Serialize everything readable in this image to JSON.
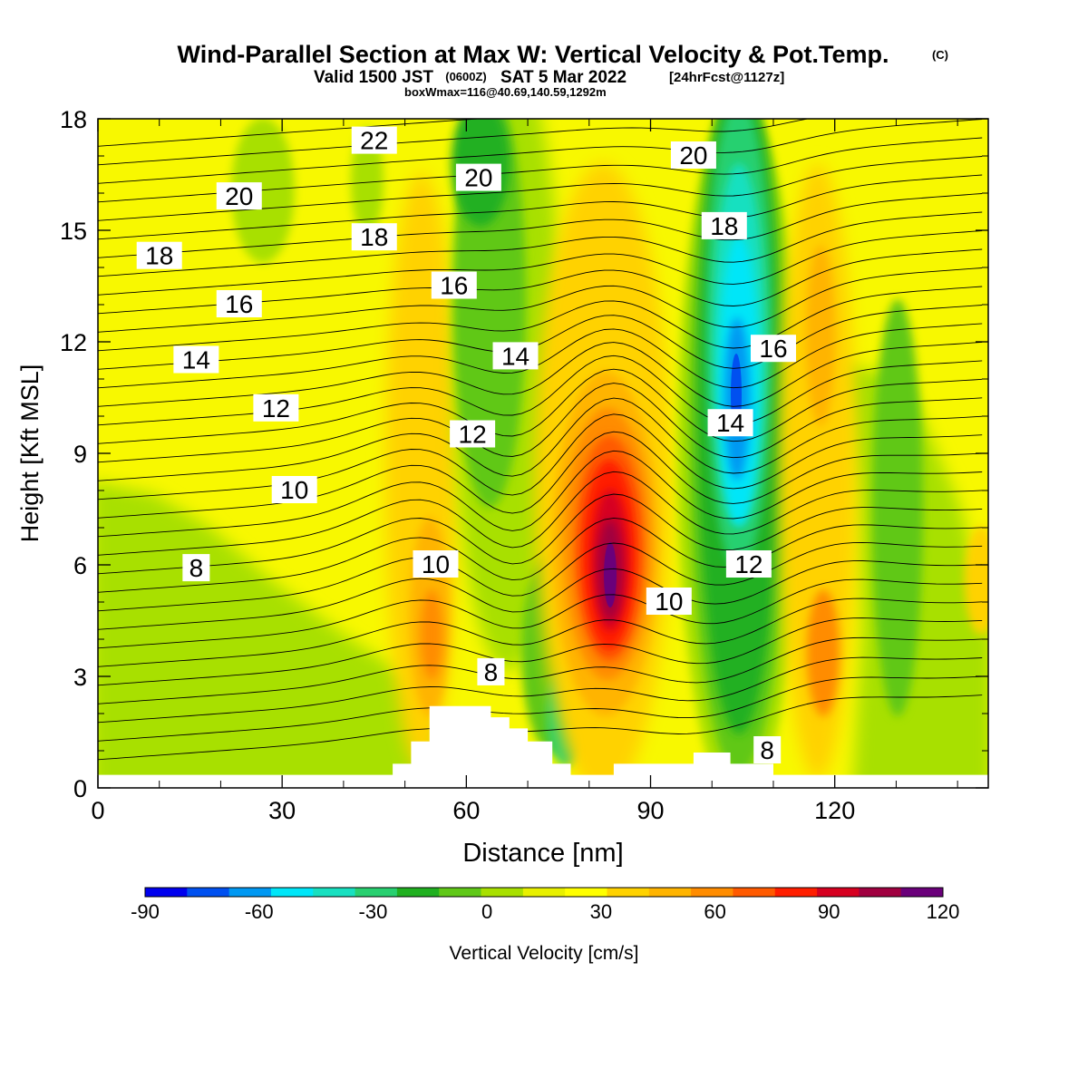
{
  "header": {
    "title": "Wind-Parallel Section at Max W: Vertical Velocity & Pot.Temp.",
    "title_tag": "(C)",
    "valid_prefix": "Valid 1500 JST",
    "valid_utc": "(0600Z)",
    "valid_date": "SAT 5 Mar 2022",
    "valid_fcst": "[24hrFcst@1127z]",
    "boxinfo": "boxWmax=116@40.69,140.59,1292m"
  },
  "chart_data": {
    "type": "heatmap",
    "xlabel": "Distance [nm]",
    "ylabel": "Height [Kft MSL]",
    "xlim": [
      0,
      145
    ],
    "ylim": [
      0,
      18
    ],
    "xticks": [
      0,
      30,
      60,
      90,
      120
    ],
    "yticks": [
      0,
      3,
      6,
      9,
      12,
      15,
      18
    ],
    "colorbar": {
      "label": "Vertical Velocity [cm/s]",
      "min": -90,
      "max": 120,
      "step": 10,
      "ticks": [
        -90,
        -60,
        -30,
        0,
        30,
        60,
        90,
        120
      ],
      "colors": [
        "#0000ee",
        "#0050f0",
        "#0098f2",
        "#00e6f8",
        "#18e0c0",
        "#28d070",
        "#20b020",
        "#60c818",
        "#a8e000",
        "#e8f000",
        "#ffff00",
        "#ffd200",
        "#ffb400",
        "#ff8c00",
        "#ff5a00",
        "#ff1e00",
        "#d60020",
        "#a00040",
        "#6a007a"
      ]
    },
    "vertical_velocity_features": [
      {
        "kind": "updraft",
        "x": 83,
        "y": 5.6,
        "peak": 116
      },
      {
        "kind": "updraft",
        "x": 54,
        "y": 5.0,
        "peak": 55
      },
      {
        "kind": "updraft",
        "x": 118,
        "y": 4.0,
        "peak": 50
      },
      {
        "kind": "downdraft",
        "x": 104,
        "y": 10.8,
        "peak": -75
      },
      {
        "kind": "downdraft",
        "x": 65,
        "y": 17.5,
        "peak": -20
      },
      {
        "kind": "downdraft",
        "x": 76,
        "y": 6.0,
        "peak": -10
      },
      {
        "kind": "downdraft",
        "x": 130,
        "y": 9.0,
        "peak": -10
      }
    ],
    "terrain": [
      [
        0,
        0.35
      ],
      [
        48,
        0.35
      ],
      [
        48,
        0.65
      ],
      [
        51,
        0.65
      ],
      [
        51,
        1.25
      ],
      [
        54,
        1.25
      ],
      [
        54,
        2.2
      ],
      [
        64,
        2.2
      ],
      [
        64,
        1.9
      ],
      [
        67,
        1.9
      ],
      [
        67,
        1.6
      ],
      [
        70,
        1.6
      ],
      [
        70,
        1.25
      ],
      [
        74,
        1.25
      ],
      [
        74,
        0.65
      ],
      [
        77,
        0.65
      ],
      [
        77,
        0.35
      ],
      [
        84,
        0.35
      ],
      [
        84,
        0.65
      ],
      [
        97,
        0.65
      ],
      [
        97,
        0.95
      ],
      [
        103,
        0.95
      ],
      [
        103,
        0.65
      ],
      [
        110,
        0.65
      ],
      [
        110,
        0.35
      ],
      [
        145,
        0.35
      ]
    ],
    "theta_contour_labels": [
      {
        "value": "22",
        "x": 45,
        "y": 17.4
      },
      {
        "value": "20",
        "x": 23,
        "y": 15.9
      },
      {
        "value": "20",
        "x": 62,
        "y": 16.4
      },
      {
        "value": "20",
        "x": 97,
        "y": 17.0
      },
      {
        "value": "18",
        "x": 10,
        "y": 14.3
      },
      {
        "value": "18",
        "x": 45,
        "y": 14.8
      },
      {
        "value": "18",
        "x": 102,
        "y": 15.1
      },
      {
        "value": "16",
        "x": 23,
        "y": 13.0
      },
      {
        "value": "16",
        "x": 58,
        "y": 13.5
      },
      {
        "value": "16",
        "x": 110,
        "y": 11.8
      },
      {
        "value": "14",
        "x": 16,
        "y": 11.5
      },
      {
        "value": "14",
        "x": 68,
        "y": 11.6
      },
      {
        "value": "14",
        "x": 103,
        "y": 9.8
      },
      {
        "value": "12",
        "x": 29,
        "y": 10.2
      },
      {
        "value": "12",
        "x": 61,
        "y": 9.5
      },
      {
        "value": "12",
        "x": 106,
        "y": 6.0
      },
      {
        "value": "10",
        "x": 32,
        "y": 8.0
      },
      {
        "value": "10",
        "x": 55,
        "y": 6.0
      },
      {
        "value": "10",
        "x": 93,
        "y": 5.0
      },
      {
        "value": "8",
        "x": 16,
        "y": 5.9
      },
      {
        "value": "8",
        "x": 64,
        "y": 3.1
      },
      {
        "value": "8",
        "x": 109,
        "y": 1.0
      }
    ]
  }
}
